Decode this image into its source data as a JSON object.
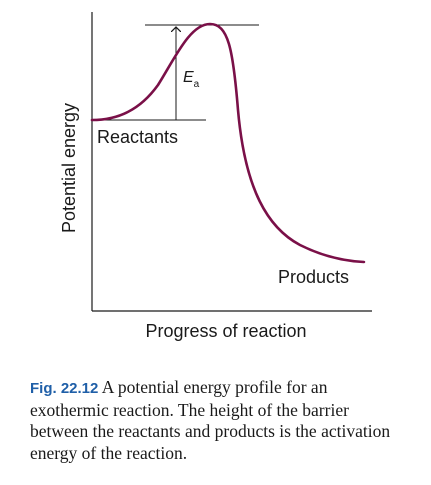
{
  "diagram": {
    "y_axis_label": "Potential energy",
    "x_axis_label": "Progress of reaction",
    "reactants_label": "Reactants",
    "products_label": "Products",
    "activation_energy_symbol": "E",
    "activation_energy_subscript": "a",
    "curve_color": "#7a1048"
  },
  "caption": {
    "figure_number": "Fig. 22.12",
    "text": "A potential energy profile for an exothermic reaction. The height of the barrier between the reactants and products is the activation energy of the reaction."
  }
}
